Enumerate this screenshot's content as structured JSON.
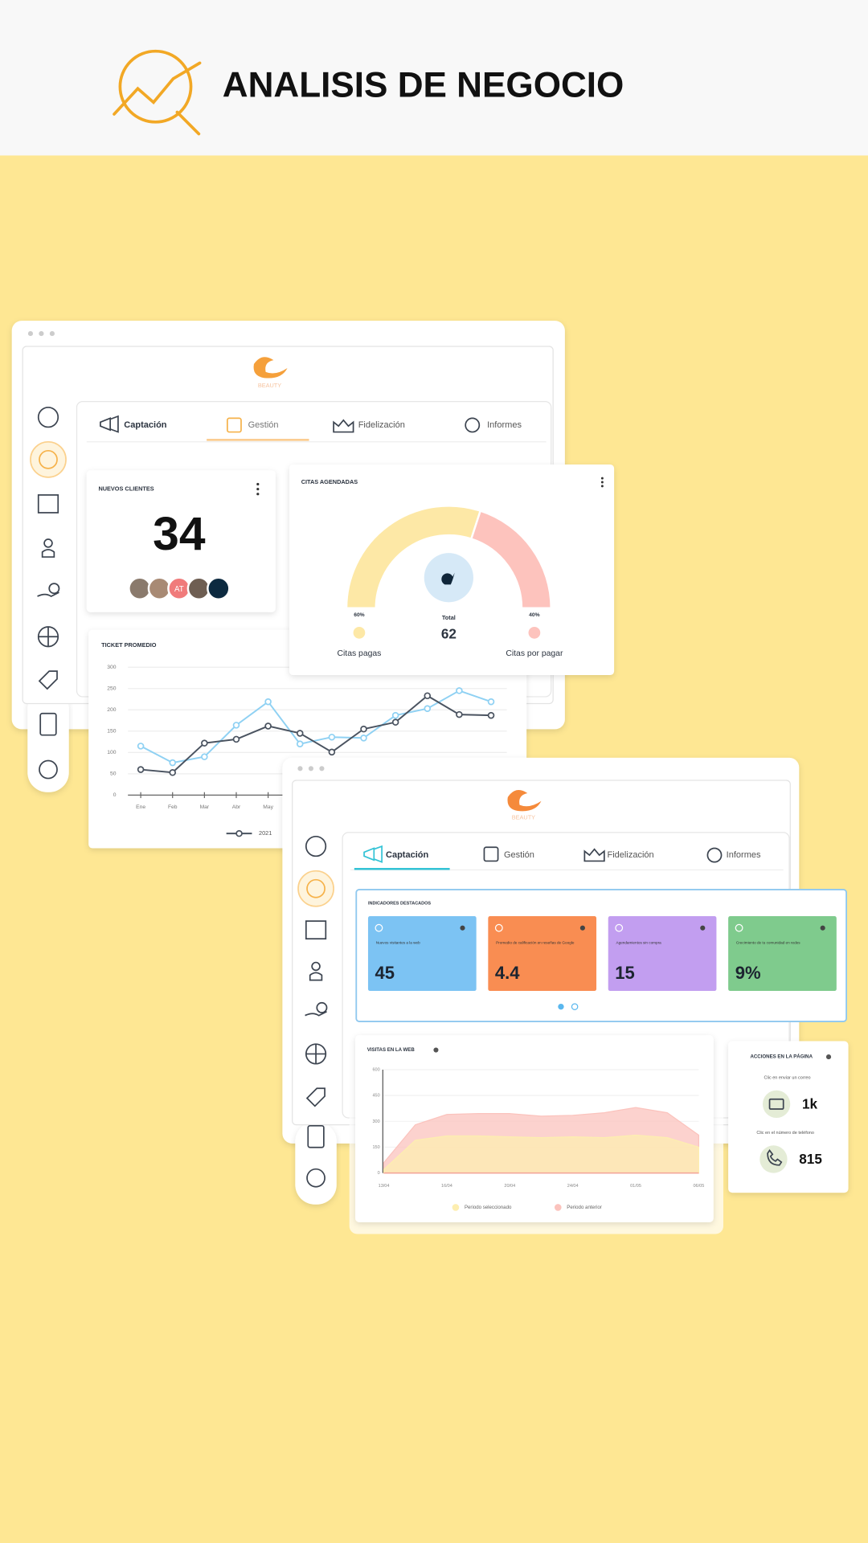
{
  "header": {
    "title": "ANALISIS DE NEGOCIO"
  },
  "window_1": {
    "logo": "BEAUTY",
    "tabs": [
      "Captación",
      "Gestión",
      "Fidelización",
      "Informes"
    ],
    "nuevos_clientes": {
      "title": "NUEVOS CLIENTES",
      "value": "34",
      "avatar_initials": "AT"
    },
    "citas_agendadas": {
      "title": "CITAS AGENDADAS",
      "total_label": "Total",
      "total": 62,
      "segments": [
        {
          "label": "Citas pagas",
          "value": 60,
          "value_label": "60%",
          "color": "#fde8a6"
        },
        {
          "label": "Citas por pagar",
          "value": 40,
          "value_label": "40%",
          "color": "#fdc3bd"
        }
      ]
    },
    "ticket_promedio": {
      "type": "line",
      "title": "TICKET PROMEDIO",
      "categories": [
        "Ene",
        "Feb",
        "Mar",
        "Abr",
        "May",
        null,
        null,
        null,
        null,
        null,
        null,
        null
      ],
      "ylim": [
        0,
        300
      ],
      "yticks": [
        0,
        50,
        100,
        150,
        200,
        250,
        300
      ],
      "grid": true,
      "series": [
        {
          "color": "#8fd1f3",
          "values": [
            115,
            76,
            90,
            164,
            219,
            120,
            136,
            134,
            187,
            203,
            245,
            219
          ]
        },
        {
          "name": "2021",
          "color": "#4a5360",
          "values": [
            60,
            53,
            122,
            131,
            162,
            145,
            101,
            155,
            171,
            233,
            189,
            187
          ]
        }
      ]
    }
  },
  "window_2": {
    "logo": "BEAUTY",
    "tabs": [
      "Captación",
      "Gestión",
      "Fidelización",
      "Informes"
    ],
    "indicadores": {
      "title": "INDICADORES DESTACADOS",
      "cards": [
        {
          "label": "Nuevos visitantes a la web",
          "value": "45",
          "color": "#7cc3f3"
        },
        {
          "label": "Promedio de calificación en reseñas de Google",
          "value": "4.4",
          "color": "#f98d52"
        },
        {
          "label": "Agendamientos sin compra",
          "value": "15",
          "color": "#c29ef0"
        },
        {
          "label": "Crecimiento de tu comunidad en redes",
          "value": "9%",
          "color": "#7fcb8d"
        }
      ]
    },
    "visitas": {
      "type": "area",
      "title": "VISITAS EN LA WEB",
      "categories": [
        "13/04",
        null,
        "16/04",
        null,
        "20/04",
        null,
        "24/04",
        null,
        "01/05",
        null,
        "06/05"
      ],
      "ylim": [
        0,
        600
      ],
      "yticks": [
        0,
        150,
        300,
        450,
        600
      ],
      "series": [
        {
          "name": "Periodo anterior",
          "color": "#fbc3bd",
          "values": [
            60,
            280,
            340,
            345,
            345,
            330,
            335,
            350,
            380,
            350,
            220
          ]
        },
        {
          "name": "Periodo seleccionado",
          "color": "#fdeeb0",
          "values": [
            20,
            190,
            215,
            215,
            210,
            205,
            210,
            205,
            220,
            205,
            150
          ]
        }
      ]
    },
    "acciones": {
      "title": "ACCIONES EN LA PÁGINA",
      "items": [
        {
          "label": "Clic en enviar un correo",
          "value": "1k"
        },
        {
          "label": "Clic en el número de teléfono",
          "value": "815"
        }
      ]
    }
  }
}
